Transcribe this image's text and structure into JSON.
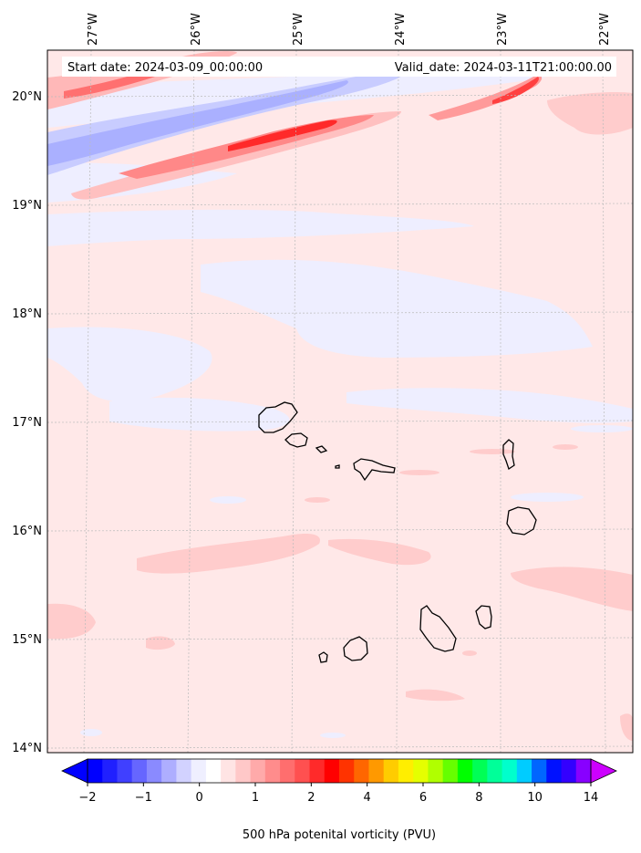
{
  "map": {
    "start_date_text": "Start date: 2024-03-09_00:00:00",
    "valid_date_text": "Valid_date: 2024-03-11T21:00:00.00",
    "lon_labels": [
      "27°W",
      "26°W",
      "25°W",
      "24°W",
      "23°W",
      "22°W"
    ],
    "lat_labels": [
      "20°N",
      "19°N",
      "18°N",
      "17°N",
      "16°N",
      "15°N",
      "14°N"
    ],
    "region": "Cape Verde islands",
    "colors": {
      "background_light_pink": "#ffe8e8",
      "light_blue": "#eeeeff",
      "pink": "#ffcccc",
      "blue": "#aab0ff",
      "red": "#ff3030",
      "coast": "#000000"
    }
  },
  "colorbar": {
    "title": "500 hPa potenital vorticity (PVU)",
    "tick_labels": [
      "−2",
      "−1",
      "0",
      "1",
      "2",
      "4",
      "6",
      "8",
      "10",
      "14"
    ],
    "segment_colors": [
      "#0000ff",
      "#2020ff",
      "#4040ff",
      "#6666ff",
      "#8a8aff",
      "#aeaeff",
      "#d2d2ff",
      "#efefff",
      "#ffffff",
      "#ffe4e4",
      "#ffc8c8",
      "#ffaaaa",
      "#ff8c8c",
      "#ff6e6e",
      "#ff5050",
      "#ff2a2a",
      "#ff0000",
      "#ff3300",
      "#ff6600",
      "#ff9900",
      "#ffcc00",
      "#ffee00",
      "#e5ff00",
      "#b0ff00",
      "#66ff00",
      "#00ff00",
      "#00ff55",
      "#00ff99",
      "#00ffcc",
      "#00ccff",
      "#0066ff",
      "#0011ff",
      "#3300ff",
      "#8800ff"
    ],
    "extend_min_color": "#0000ff",
    "extend_max_color": "#cc00ff"
  }
}
